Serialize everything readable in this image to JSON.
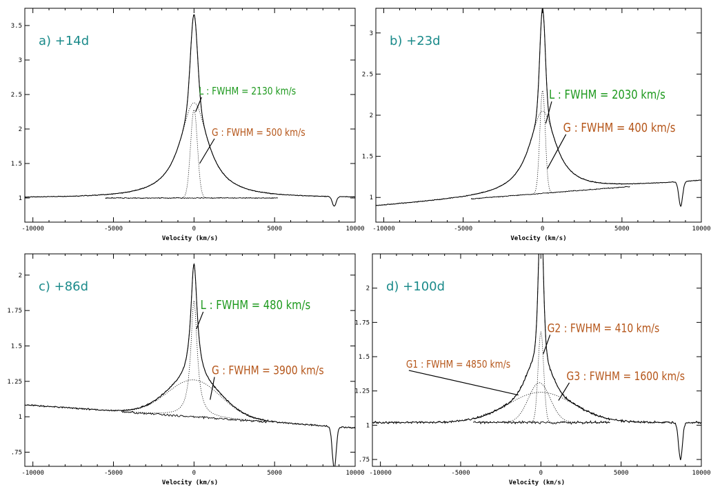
{
  "colors": {
    "tag": "#1a8a8a",
    "lorentz": "#1f9a1f",
    "gauss": "#b5561a",
    "ink": "#000000"
  },
  "chart_data": [
    {
      "type": "line",
      "tag": "a) +14d",
      "xlabel": "Velocity (km/s)",
      "xlim": [
        -10500,
        10000
      ],
      "ylim": [
        0.65,
        3.75
      ],
      "xticks": [
        -10000,
        -5000,
        0,
        5000,
        10000
      ],
      "xtick_labels": [
        "-10000",
        "-5000",
        "0",
        "5000",
        "10000"
      ],
      "yticks": [
        1,
        1.5,
        2,
        2.5,
        3,
        3.5
      ],
      "ytick_labels": [
        "1",
        "1.5",
        "2",
        "2.5",
        "3",
        "3.5"
      ],
      "profile": {
        "base": 1.0,
        "lor_amp": 1.38,
        "lor_fwhm": 2130,
        "g_amp": 1.28,
        "g_fwhm": 500,
        "slope": 0.0,
        "absorption_v": 8700,
        "absorption_depth": 0.14
      },
      "annotations": [
        {
          "text": "L : FWHM = 2130 km/s",
          "color": "lorentz",
          "at": [
            300,
            2.5
          ],
          "pointer_to": [
            100,
            2.25
          ],
          "size": 15
        },
        {
          "text": "G : FWHM = 500 km/s",
          "color": "gauss",
          "at": [
            1100,
            1.9
          ],
          "pointer_to": [
            350,
            1.5
          ],
          "size": 15
        }
      ]
    },
    {
      "type": "line",
      "tag": "b) +23d",
      "xlabel": "Velocity (km/s)",
      "xlim": [
        -10500,
        10000
      ],
      "ylim": [
        0.7,
        3.3
      ],
      "xticks": [
        -10000,
        -5000,
        0,
        5000,
        10000
      ],
      "xtick_labels": [
        "-10000",
        "-5000",
        "0",
        "5000",
        "10000"
      ],
      "yticks": [
        1,
        1.5,
        2,
        2.5,
        3
      ],
      "ytick_labels": [
        "1",
        "1.5",
        "2",
        "2.5",
        "3"
      ],
      "profile": {
        "base": 1.05,
        "lor_amp": 1.0,
        "lor_fwhm": 2030,
        "g_amp": 1.25,
        "g_fwhm": 400,
        "slope": 1.5e-05,
        "absorption_v": 8700,
        "absorption_depth": 0.3
      },
      "annotations": [
        {
          "text": "L : FWHM = 2030 km/s",
          "color": "lorentz",
          "at": [
            400,
            2.2
          ],
          "pointer_to": [
            200,
            1.9
          ],
          "size": 18
        },
        {
          "text": "G : FWHM = 400 km/s",
          "color": "gauss",
          "at": [
            1300,
            1.8
          ],
          "pointer_to": [
            300,
            1.35
          ],
          "size": 18
        }
      ]
    },
    {
      "type": "line",
      "tag": "c) +86d",
      "xlabel": "Velocity (km/s)",
      "xlim": [
        -10500,
        10000
      ],
      "ylim": [
        0.65,
        2.15
      ],
      "xticks": [
        -10000,
        -5000,
        0,
        5000,
        10000
      ],
      "xtick_labels": [
        "-10000",
        "-5000",
        "0",
        "5000",
        "10000"
      ],
      "yticks": [
        0.75,
        1,
        1.25,
        1.5,
        1.75,
        2
      ],
      "ytick_labels": [
        ".75",
        "1",
        "1.25",
        "1.5",
        "1.75",
        "2"
      ],
      "profile": {
        "base": 1.0,
        "lor_amp": 0.82,
        "lor_fwhm": 480,
        "g_amp": 0.26,
        "g_fwhm": 3900,
        "slope": -8e-06,
        "absorption_v": 8700,
        "absorption_depth": 0.3
      },
      "annotations": [
        {
          "text": "L : FWHM = 480 km/s",
          "color": "lorentz",
          "at": [
            400,
            1.76
          ],
          "pointer_to": [
            150,
            1.62
          ],
          "size": 18
        },
        {
          "text": "G : FWHM = 3900 km/s",
          "color": "gauss",
          "at": [
            1100,
            1.3
          ],
          "pointer_to": [
            1000,
            1.12
          ],
          "size": 17
        }
      ]
    },
    {
      "type": "line",
      "tag": "d) +100d",
      "xlabel": "Velocity (km/s)",
      "xlim": [
        -10500,
        10000
      ],
      "ylim": [
        0.7,
        2.25
      ],
      "xticks": [
        -10000,
        -5000,
        0,
        5000,
        10000
      ],
      "xtick_labels": [
        "-10000",
        "-5000",
        "0",
        "5000",
        "10000"
      ],
      "yticks": [
        0.75,
        1,
        1.25,
        1.5,
        1.75,
        2
      ],
      "ytick_labels": [
        ".75",
        "1",
        "1.25",
        "1.5",
        "1.75",
        "2"
      ],
      "profile": {
        "base": 1.02,
        "g1_amp": 0.22,
        "g1_fwhm": 4850,
        "g2_amp": 0.66,
        "g2_fwhm": 410,
        "g3_amp": 0.29,
        "g3_fwhm": 1600,
        "slope": 0.0,
        "absorption_v": 8700,
        "absorption_depth": 0.27
      },
      "annotations": [
        {
          "text": "G2 : FWHM = 410 km/s",
          "color": "gauss",
          "at": [
            400,
            1.68
          ],
          "pointer_to": [
            150,
            1.52
          ],
          "size": 17
        },
        {
          "text": "G1 : FWHM = 4850 km/s",
          "color": "gauss",
          "at": [
            -8400,
            1.42
          ],
          "pointer_to": [
            -1400,
            1.22
          ],
          "size": 15
        },
        {
          "text": "G3 : FWHM = 1600 km/s",
          "color": "gauss",
          "at": [
            1600,
            1.33
          ],
          "pointer_to": [
            1100,
            1.18
          ],
          "size": 17
        }
      ]
    }
  ]
}
